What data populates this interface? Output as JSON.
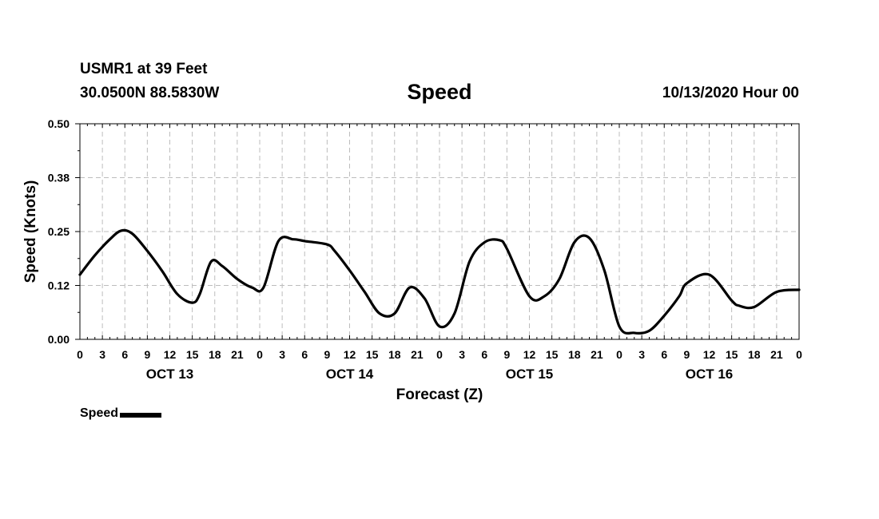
{
  "header": {
    "station": "USMR1 at 39 Feet",
    "coords": "30.0500N 88.5830W",
    "title": "Speed",
    "datetime": "10/13/2020 Hour 00"
  },
  "legend": {
    "label": "Speed"
  },
  "chart_data": {
    "type": "line",
    "title": "Speed",
    "xlabel": "Forecast (Z)",
    "ylabel": "Speed (Knots)",
    "ylim": [
      0,
      0.5
    ],
    "xlim": [
      0,
      96
    ],
    "grid": true,
    "y_ticks": [
      0.0,
      0.125,
      0.25,
      0.375,
      0.5
    ],
    "y_tick_labels": [
      "0.00",
      "0.12",
      "0.25",
      "0.38",
      "0.50"
    ],
    "x_ticks": [
      0,
      3,
      6,
      9,
      12,
      15,
      18,
      21,
      24,
      27,
      30,
      33,
      36,
      39,
      42,
      45,
      48,
      51,
      54,
      57,
      60,
      63,
      66,
      69,
      72,
      75,
      78,
      81,
      84,
      87,
      90,
      93,
      96
    ],
    "x_tick_labels": [
      "0",
      "3",
      "6",
      "9",
      "12",
      "15",
      "18",
      "21",
      "0",
      "3",
      "6",
      "9",
      "12",
      "15",
      "18",
      "21",
      "0",
      "3",
      "6",
      "9",
      "12",
      "15",
      "18",
      "21",
      "0",
      "3",
      "6",
      "9",
      "12",
      "15",
      "18",
      "21",
      "0"
    ],
    "day_labels": [
      {
        "hour": 12,
        "label": "OCT 13"
      },
      {
        "hour": 36,
        "label": "OCT 14"
      },
      {
        "hour": 60,
        "label": "OCT 15"
      },
      {
        "hour": 84,
        "label": "OCT 16"
      }
    ],
    "legend": [
      "Speed"
    ],
    "series": [
      {
        "name": "Speed",
        "color": "#000000",
        "x": [
          0,
          2,
          4,
          5.5,
          7,
          9,
          11,
          13,
          15,
          16,
          17.5,
          19,
          21,
          23,
          24.5,
          26.5,
          28.5,
          30,
          33,
          34,
          36,
          38,
          40,
          42,
          44,
          46,
          48,
          50,
          52,
          54,
          56,
          57,
          60,
          62,
          64,
          66,
          68,
          70,
          72,
          74,
          76,
          78,
          80,
          81,
          84,
          87,
          88,
          90,
          93,
          96
        ],
        "values": [
          0.15,
          0.195,
          0.232,
          0.252,
          0.245,
          0.205,
          0.158,
          0.105,
          0.085,
          0.105,
          0.18,
          0.17,
          0.14,
          0.12,
          0.12,
          0.228,
          0.232,
          0.228,
          0.22,
          0.205,
          0.16,
          0.11,
          0.06,
          0.06,
          0.12,
          0.095,
          0.03,
          0.06,
          0.18,
          0.225,
          0.23,
          0.21,
          0.1,
          0.1,
          0.14,
          0.225,
          0.235,
          0.16,
          0.03,
          0.015,
          0.02,
          0.055,
          0.1,
          0.13,
          0.15,
          0.09,
          0.078,
          0.075,
          0.11,
          0.115
        ]
      }
    ]
  }
}
